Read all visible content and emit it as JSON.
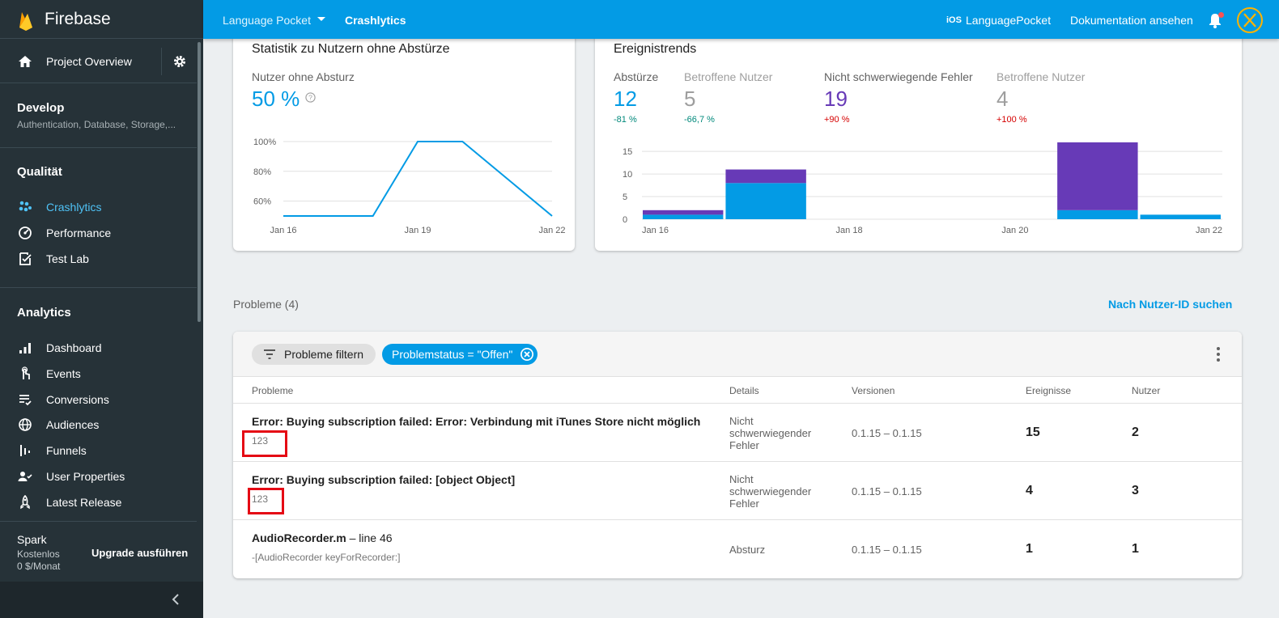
{
  "sidebar": {
    "brand": "Firebase",
    "project_overview": "Project Overview",
    "develop": {
      "title": "Develop",
      "subtitle": "Authentication, Database, Storage,..."
    },
    "quality": {
      "title": "Qualität",
      "items": [
        {
          "label": "Crashlytics",
          "icon": "crashlytics-icon",
          "active": true
        },
        {
          "label": "Performance",
          "icon": "speedometer-icon",
          "active": false
        },
        {
          "label": "Test Lab",
          "icon": "checklist-icon",
          "active": false
        }
      ]
    },
    "analytics": {
      "title": "Analytics",
      "items": [
        {
          "label": "Dashboard",
          "icon": "bar-chart-icon"
        },
        {
          "label": "Events",
          "icon": "touch-icon"
        },
        {
          "label": "Conversions",
          "icon": "conversions-icon"
        },
        {
          "label": "Audiences",
          "icon": "globe-icon"
        },
        {
          "label": "Funnels",
          "icon": "funnel-icon"
        },
        {
          "label": "User Properties",
          "icon": "users-icon"
        },
        {
          "label": "Latest Release",
          "icon": "rocket-icon"
        }
      ]
    },
    "plan": {
      "name": "Spark",
      "tier": "Kostenlos",
      "price": "0 $/Monat",
      "upgrade": "Upgrade ausführen"
    }
  },
  "topbar": {
    "project": "Language Pocket",
    "section": "Crashlytics",
    "platform": "iOS",
    "app": "LanguagePocket",
    "docs": "Dokumentation ansehen",
    "accent": "#039be5"
  },
  "stats_card": {
    "title": "Statistik zu Nutzern ohne Abstürze",
    "metric_label": "Nutzer ohne Absturz",
    "metric_value": "50 %"
  },
  "trends_card": {
    "title": "Ereignistrends",
    "metrics": [
      {
        "label": "Abstürze",
        "value": "12",
        "delta": "-81 %",
        "value_color": "#039be5",
        "delta_color": "#00897b"
      },
      {
        "label": "Betroffene Nutzer",
        "value": "5",
        "delta": "-66,7 %",
        "value_color": "#9e9e9e",
        "delta_color": "#00897b"
      },
      {
        "label": "Nicht schwerwiegende Fehler",
        "value": "19",
        "delta": "+90 %",
        "value_color": "#673ab7",
        "delta_color": "#d50000"
      },
      {
        "label": "Betroffene Nutzer",
        "value": "4",
        "delta": "+100 %",
        "value_color": "#9e9e9e",
        "delta_color": "#d50000"
      }
    ]
  },
  "chart_data": [
    {
      "type": "line",
      "x": [
        "Jan 16",
        "Jan 17",
        "Jan 18",
        "Jan 19",
        "Jan 20",
        "Jan 21",
        "Jan 22"
      ],
      "xticks": [
        "Jan 16",
        "Jan 19",
        "Jan 22"
      ],
      "values": [
        50,
        50,
        50,
        100,
        100,
        75,
        50
      ],
      "yticks": [
        "100%",
        "80%",
        "60%"
      ],
      "ylim": [
        50,
        100
      ],
      "grid": true,
      "color": "#039be5"
    },
    {
      "type": "bar",
      "stacked": true,
      "x": [
        "Jan 16",
        "Jan 17",
        "Jan 18",
        "Jan 19",
        "Jan 20",
        "Jan 21",
        "Jan 22"
      ],
      "xticks": [
        "Jan 16",
        "Jan 18",
        "Jan 20",
        "Jan 22"
      ],
      "series": [
        {
          "name": "Abstürze",
          "values": [
            1,
            8,
            0,
            0,
            0,
            2,
            1
          ],
          "color": "#039be5"
        },
        {
          "name": "Nicht schwerwiegende Fehler",
          "values": [
            1,
            3,
            0,
            0,
            0,
            15,
            0
          ],
          "color": "#673ab7"
        }
      ],
      "yticks": [
        "15",
        "10",
        "5",
        "0"
      ],
      "ylim": [
        0,
        17
      ],
      "grid": true
    }
  ],
  "issues": {
    "header": "Probleme (4)",
    "search_link": "Nach Nutzer-ID suchen",
    "filter_chip": "Probleme filtern",
    "status_chip": "Problemstatus = \"Offen\"",
    "columns": [
      "Probleme",
      "Details",
      "Versionen",
      "Ereignisse",
      "Nutzer"
    ],
    "rows": [
      {
        "title": "Error: Buying subscription failed: Error: Verbindung mit iTunes Store nicht möglich",
        "title_suffix": "",
        "sub": "123",
        "details": "Nicht schwerwiegender Fehler",
        "versions": "0.1.15 – 0.1.15",
        "events": "15",
        "users": "2",
        "highlight": true
      },
      {
        "title": "Error: Buying subscription failed: [object Object]",
        "title_suffix": "",
        "sub": "123",
        "details": "Nicht schwerwiegender Fehler",
        "versions": "0.1.15 – 0.1.15",
        "events": "4",
        "users": "3",
        "highlight": true
      },
      {
        "title": "AudioRecorder.m",
        "title_suffix": " – line 46",
        "sub": "-[AudioRecorder keyForRecorder:]",
        "details": "Absturz",
        "versions": "0.1.15 – 0.1.15",
        "events": "1",
        "users": "1",
        "highlight": false
      }
    ]
  }
}
